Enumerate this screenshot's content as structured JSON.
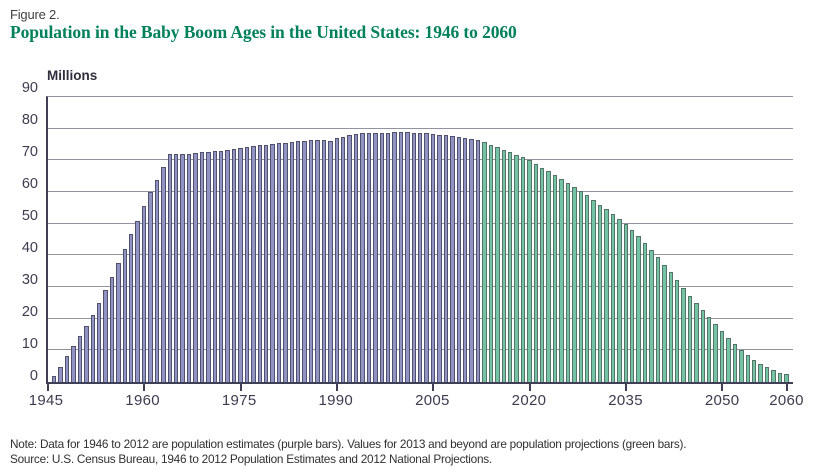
{
  "figure_label": "Figure 2.",
  "title": "Population in the Baby Boom Ages in the United States: 1946 to 2060",
  "note": "Note: Data for 1946 to 2012 are population estimates (purple bars). Values for 2013 and beyond are population projections (green bars).",
  "source": "Source: U.S. Census Bureau, 1946 to 2012 Population Estimates and 2012 National Projections.",
  "colors": {
    "title_green": "#00805c",
    "estimate_bar_fill": "#9193c2",
    "estimate_bar_border": "#50516f",
    "projection_bar_fill": "#74c3a4",
    "projection_bar_border": "#537466",
    "gridline": "#9194a0",
    "axis": "#3f4055",
    "tick_text": "#3c3c50"
  },
  "chart_data": {
    "type": "bar",
    "title": "Population in the Baby Boom Ages in the United States: 1946 to 2060",
    "ylabel": "Millions",
    "xlabel": "",
    "ylim": [
      0,
      90
    ],
    "yticks": [
      0,
      10,
      20,
      30,
      40,
      50,
      60,
      70,
      80,
      90
    ],
    "xticks": [
      1945,
      1960,
      1975,
      1990,
      2005,
      2020,
      2035,
      2050,
      2060
    ],
    "x_range": [
      1945,
      2061
    ],
    "grid": true,
    "legend_position": "none",
    "series": [
      {
        "name": "Population estimates (purple bars)",
        "start_year": 1946,
        "end_year": 2012,
        "values": [
          1.8,
          4.8,
          8.2,
          11.4,
          14.5,
          17.8,
          21.2,
          25.0,
          29.2,
          33.3,
          37.6,
          42.0,
          46.6,
          51.0,
          55.7,
          60.1,
          63.9,
          68.0,
          71.9,
          71.9,
          72.0,
          72.1,
          72.3,
          72.5,
          72.7,
          72.9,
          73.1,
          73.3,
          73.5,
          73.8,
          74.1,
          74.4,
          74.7,
          75.0,
          75.2,
          75.4,
          75.6,
          75.8,
          76.0,
          76.2,
          76.3,
          76.5,
          76.5,
          76.0,
          77.0,
          77.5,
          78.0,
          78.3,
          78.5,
          78.6,
          78.6,
          78.7,
          78.7,
          78.8,
          78.8,
          78.8,
          78.7,
          78.6,
          78.5,
          78.3,
          78.1,
          77.9,
          77.7,
          77.4,
          77.1,
          76.8,
          76.4
        ]
      },
      {
        "name": "Population projections (green bars)",
        "start_year": 2013,
        "end_year": 2060,
        "values": [
          75.8,
          75.0,
          74.2,
          73.4,
          72.6,
          71.8,
          70.9,
          70.0,
          68.9,
          67.7,
          66.5,
          65.3,
          64.0,
          62.8,
          61.5,
          60.2,
          58.9,
          57.5,
          56.0,
          54.5,
          53.0,
          51.5,
          50.0,
          48.0,
          46.0,
          43.9,
          41.7,
          39.5,
          37.1,
          34.7,
          32.2,
          29.6,
          27.3,
          25.0,
          22.7,
          20.4,
          18.2,
          16.0,
          14.0,
          12.0,
          10.2,
          8.5,
          7.0,
          5.7,
          4.6,
          3.7,
          3.0,
          2.4
        ]
      }
    ]
  }
}
